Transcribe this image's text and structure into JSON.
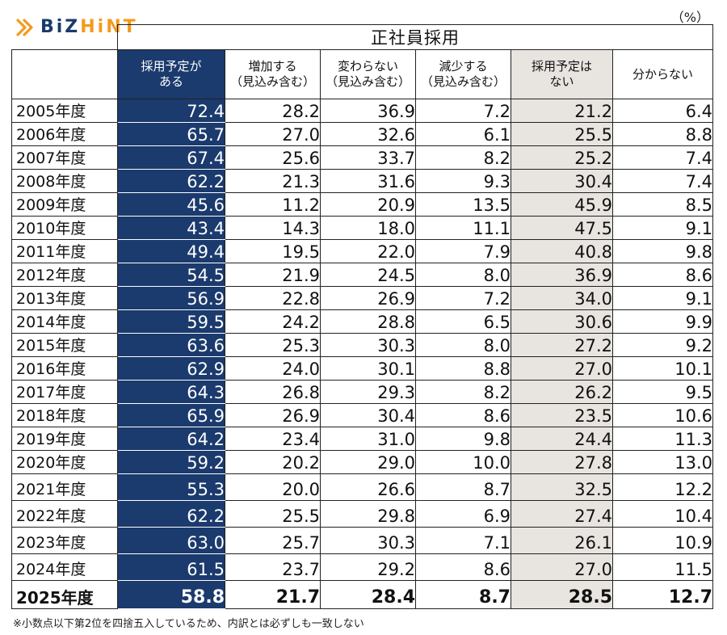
{
  "logo": {
    "part1": "BiZ",
    "part2": "HiNT",
    "accent_color": "#f39a1e",
    "brand_color": "#1a3a6b"
  },
  "unit": "（%）",
  "table": {
    "group_title": "正社員採用",
    "headers": [
      {
        "line1": "採用予定が",
        "line2": "ある"
      },
      {
        "line1": "増加する",
        "line2": "（見込み含む）"
      },
      {
        "line1": "変わらない",
        "line2": "（見込み含む）"
      },
      {
        "line1": "減少する",
        "line2": "（見込み含む）"
      },
      {
        "line1": "採用予定は",
        "line2": "ない"
      },
      {
        "line1": "分からない",
        "line2": ""
      }
    ],
    "rows": [
      {
        "year": "2005年度",
        "v": [
          "72.4",
          "28.2",
          "36.9",
          "7.2",
          "21.2",
          "6.4"
        ]
      },
      {
        "year": "2006年度",
        "v": [
          "65.7",
          "27.0",
          "32.6",
          "6.1",
          "25.5",
          "8.8"
        ]
      },
      {
        "year": "2007年度",
        "v": [
          "67.4",
          "25.6",
          "33.7",
          "8.2",
          "25.2",
          "7.4"
        ]
      },
      {
        "year": "2008年度",
        "v": [
          "62.2",
          "21.3",
          "31.6",
          "9.3",
          "30.4",
          "7.4"
        ]
      },
      {
        "year": "2009年度",
        "v": [
          "45.6",
          "11.2",
          "20.9",
          "13.5",
          "45.9",
          "8.5"
        ]
      },
      {
        "year": "2010年度",
        "v": [
          "43.4",
          "14.3",
          "18.0",
          "11.1",
          "47.5",
          "9.1"
        ]
      },
      {
        "year": "2011年度",
        "v": [
          "49.4",
          "19.5",
          "22.0",
          "7.9",
          "40.8",
          "9.8"
        ]
      },
      {
        "year": "2012年度",
        "v": [
          "54.5",
          "21.9",
          "24.5",
          "8.0",
          "36.9",
          "8.6"
        ]
      },
      {
        "year": "2013年度",
        "v": [
          "56.9",
          "22.8",
          "26.9",
          "7.2",
          "34.0",
          "9.1"
        ]
      },
      {
        "year": "2014年度",
        "v": [
          "59.5",
          "24.2",
          "28.8",
          "6.5",
          "30.6",
          "9.9"
        ]
      },
      {
        "year": "2015年度",
        "v": [
          "63.6",
          "25.3",
          "30.3",
          "8.0",
          "27.2",
          "9.2"
        ]
      },
      {
        "year": "2016年度",
        "v": [
          "62.9",
          "24.0",
          "30.1",
          "8.8",
          "27.0",
          "10.1"
        ]
      },
      {
        "year": "2017年度",
        "v": [
          "64.3",
          "26.8",
          "29.3",
          "8.2",
          "26.2",
          "9.5"
        ]
      },
      {
        "year": "2018年度",
        "v": [
          "65.9",
          "26.9",
          "30.4",
          "8.6",
          "23.5",
          "10.6"
        ]
      },
      {
        "year": "2019年度",
        "v": [
          "64.2",
          "23.4",
          "31.0",
          "9.8",
          "24.4",
          "11.3"
        ]
      },
      {
        "year": "2020年度",
        "v": [
          "59.2",
          "20.2",
          "29.0",
          "10.0",
          "27.8",
          "13.0"
        ]
      },
      {
        "year": "2021年度",
        "v": [
          "55.3",
          "20.0",
          "26.6",
          "8.7",
          "32.5",
          "12.2"
        ]
      },
      {
        "year": "2022年度",
        "v": [
          "62.2",
          "25.5",
          "29.8",
          "6.9",
          "27.4",
          "10.4"
        ]
      },
      {
        "year": "2023年度",
        "v": [
          "63.0",
          "25.7",
          "30.3",
          "7.1",
          "26.1",
          "10.9"
        ]
      },
      {
        "year": "2024年度",
        "v": [
          "61.5",
          "23.7",
          "29.2",
          "8.6",
          "27.0",
          "11.5"
        ]
      },
      {
        "year": "2025年度",
        "v": [
          "58.8",
          "21.7",
          "28.4",
          "8.7",
          "28.5",
          "12.7"
        ]
      }
    ]
  },
  "footnote": "※小数点以下第2位を四捨五入しているため、内訳とは必ずしも一致しない",
  "colors": {
    "plan_column": "#1b3a6d",
    "none_column": "#e8e4e0"
  }
}
